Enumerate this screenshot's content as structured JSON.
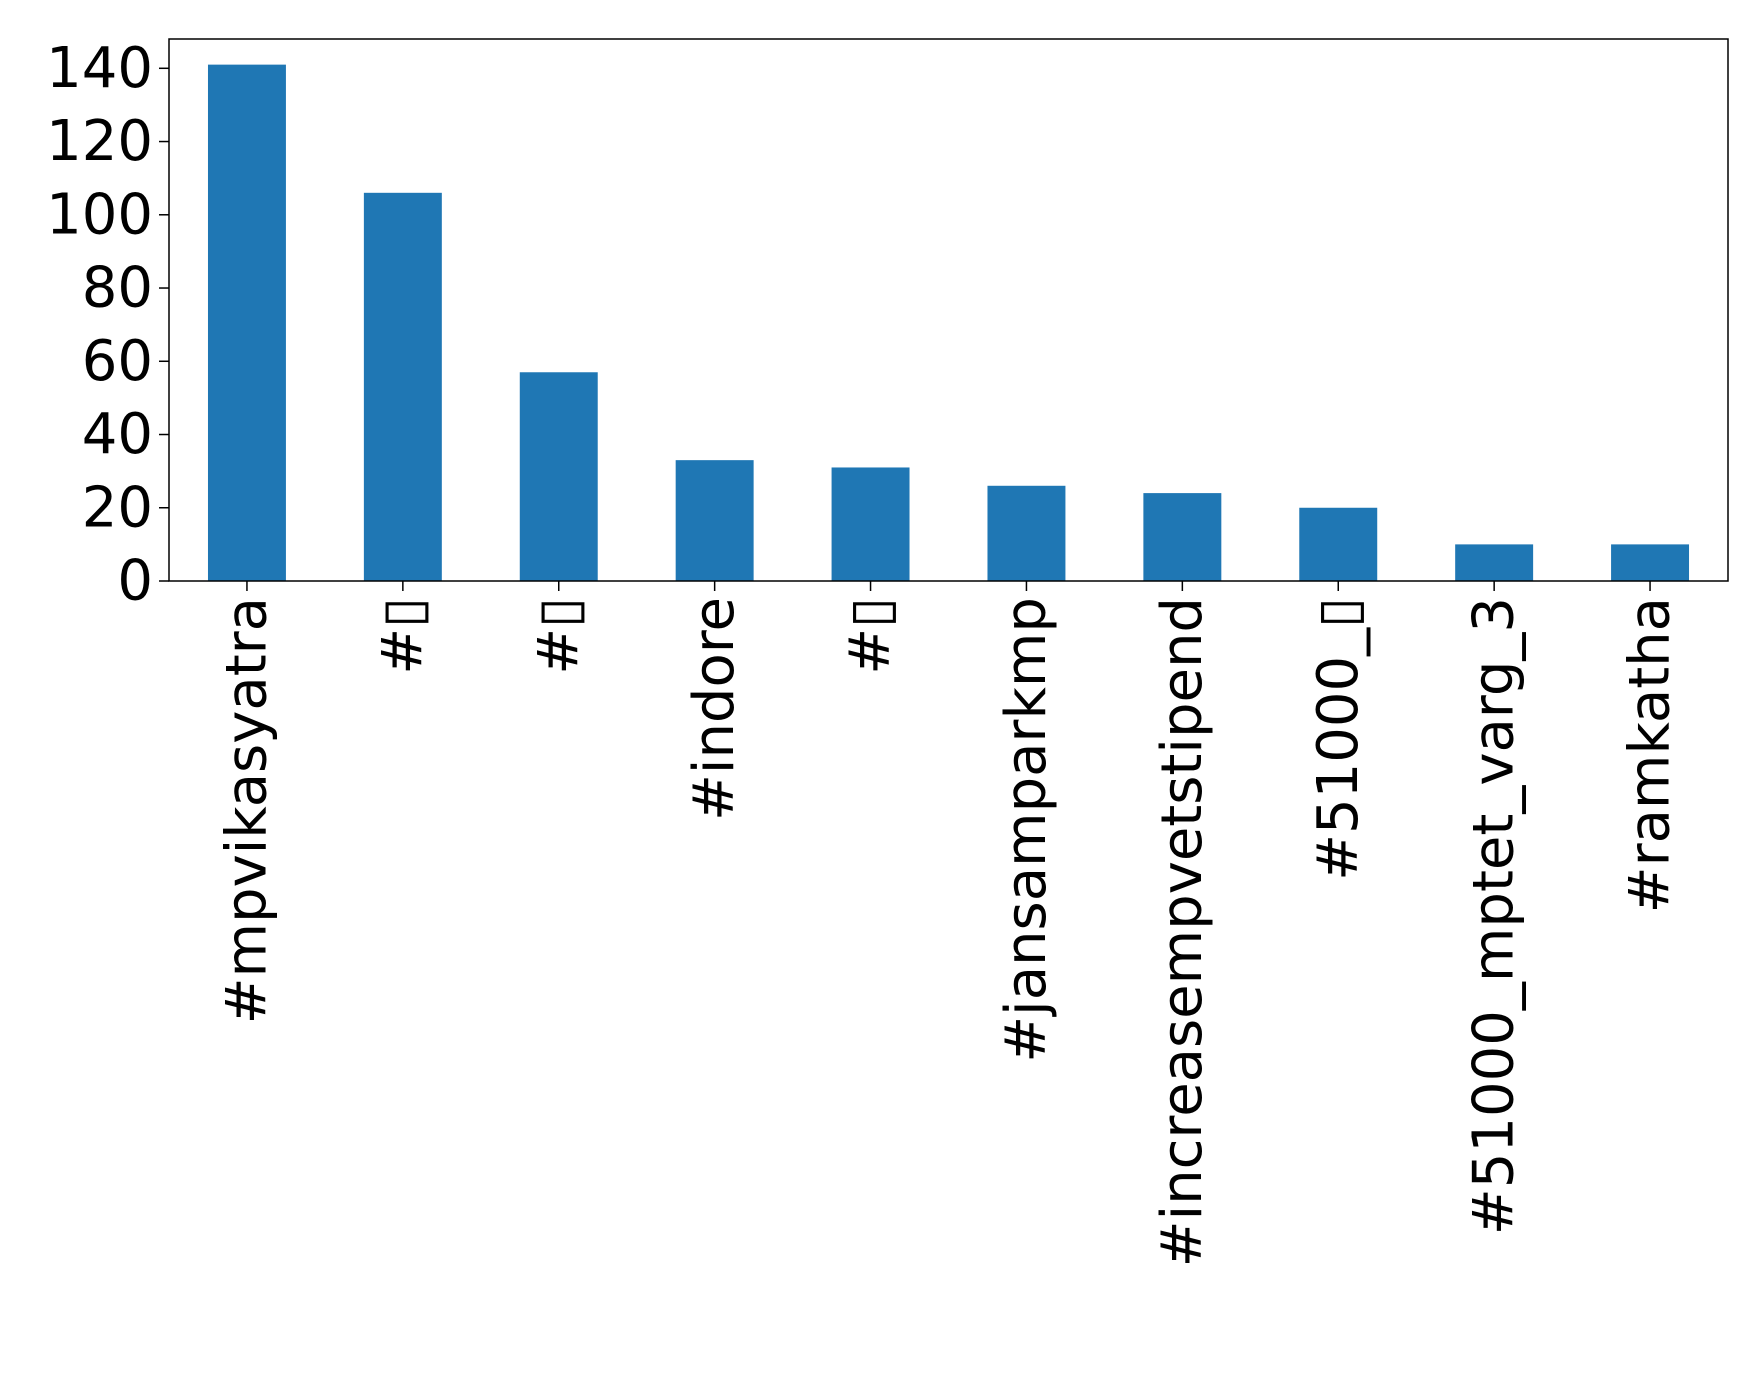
{
  "chart_data": {
    "type": "bar",
    "title": "",
    "xlabel": "",
    "ylabel": "",
    "categories": [
      "#mpvikasyatra",
      "#▯",
      "#▯",
      "#indore",
      "#▯",
      "#jansamparkmp",
      "#increasempvetstipend",
      "#51000_▯",
      "#51000_mptet_varg_3",
      "#ramkatha"
    ],
    "values": [
      141,
      106,
      57,
      33,
      31,
      26,
      24,
      20,
      10,
      10
    ],
    "ylim": [
      0,
      148
    ],
    "yticks": [
      0,
      20,
      40,
      60,
      80,
      100,
      120,
      140
    ],
    "grid": false,
    "bar_color": "#1f77b4"
  }
}
